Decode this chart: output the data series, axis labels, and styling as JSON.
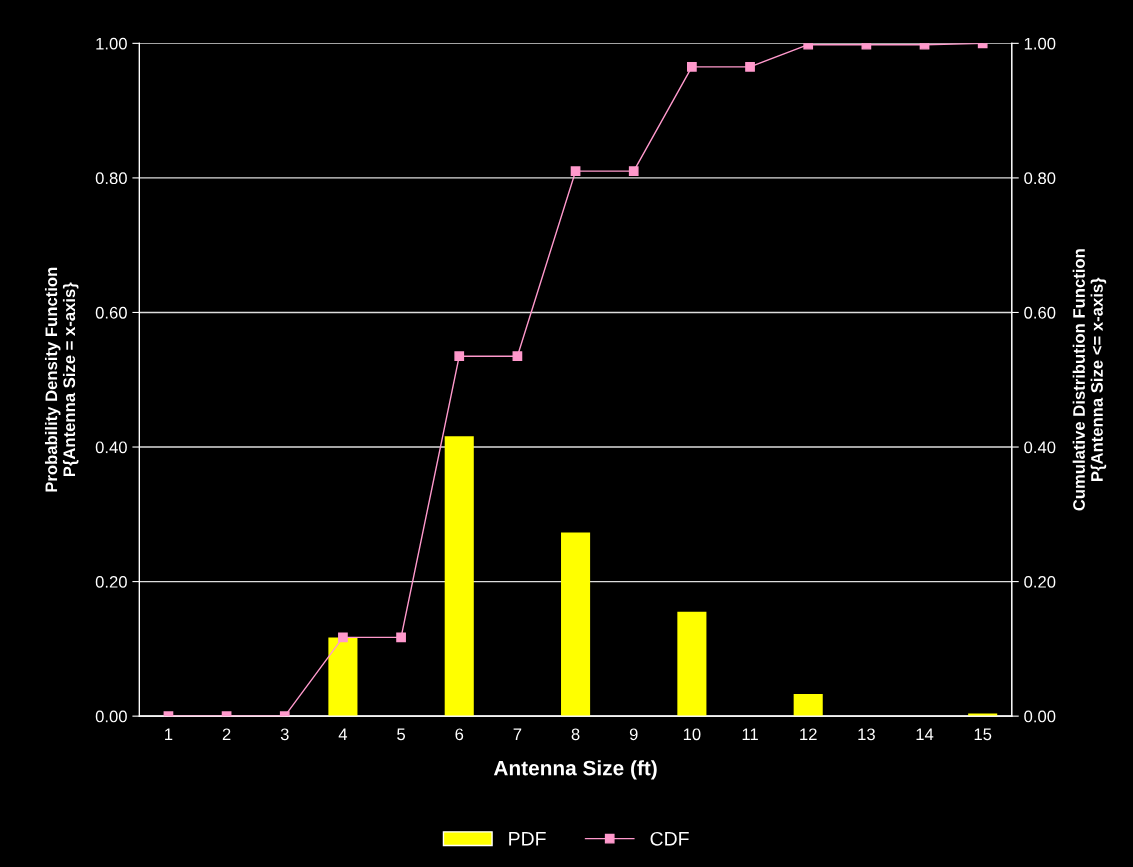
{
  "chart_data": {
    "type": "bar",
    "xlabel": "Antenna Size (ft)",
    "ylabel": "Probability Density Function\nP{Antenna Size = x-axis}",
    "y2label": "Cumulative Distribution Function\nP{Antenna Size <= x-axis}",
    "categories": [
      "1",
      "2",
      "3",
      "4",
      "5",
      "6",
      "7",
      "8",
      "9",
      "10",
      "11",
      "12",
      "13",
      "14",
      "15"
    ],
    "series": [
      {
        "name": "PDF",
        "color": "#ffff00",
        "values": [
          null,
          null,
          null,
          0.117,
          0,
          0.416,
          0,
          0.273,
          0,
          0.155,
          0,
          0.033,
          0,
          0,
          0.004
        ]
      },
      {
        "name": "CDF",
        "type": "line",
        "axis": "y2",
        "color": "#ff99cc",
        "marker": "square",
        "values": [
          0,
          0,
          0,
          0.117,
          0.117,
          0.535,
          0.535,
          0.81,
          0.81,
          0.965,
          0.965,
          0.998,
          0.998,
          0.998,
          1.0
        ]
      }
    ],
    "ylim": [
      0,
      1
    ],
    "yticks": [
      {
        "value": 0,
        "label": "0.00"
      },
      {
        "value": 0.2,
        "label": "0.20"
      },
      {
        "value": 0.4,
        "label": "0.40"
      },
      {
        "value": 0.6,
        "label": "0.60"
      },
      {
        "value": 0.8,
        "label": "0.80"
      },
      {
        "value": 1,
        "label": "1.00"
      }
    ],
    "y2lim": [
      0,
      1
    ],
    "y2ticks": [
      {
        "value": 0,
        "label": "0.00"
      },
      {
        "value": 0.2,
        "label": "0.20"
      },
      {
        "value": 0.4,
        "label": "0.40"
      },
      {
        "value": 0.6,
        "label": "0.60"
      },
      {
        "value": 0.8,
        "label": "0.80"
      },
      {
        "value": 1,
        "label": "1.00"
      }
    ],
    "grid": "y",
    "legend": "bottom"
  }
}
